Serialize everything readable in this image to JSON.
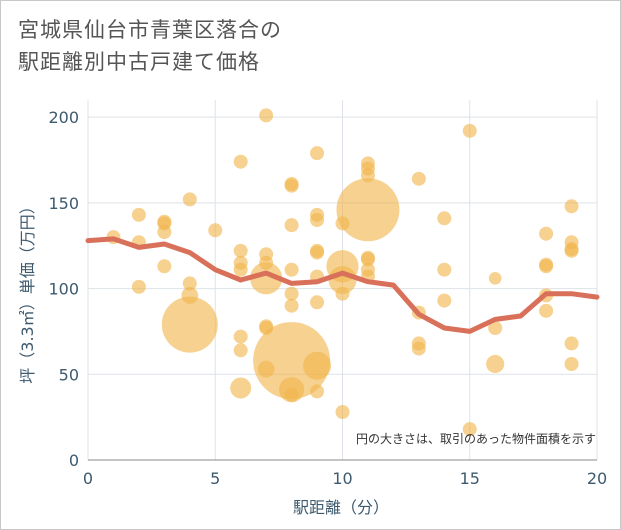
{
  "title_line1": "宮城県仙台市青葉区落合の",
  "title_line2": "駅距離別中古戸建て価格",
  "chart_data": {
    "type": "scatter",
    "xlabel": "駅距離（分）",
    "ylabel": "坪（3.3㎡）単価（万円）",
    "xlim": [
      0,
      20
    ],
    "ylim": [
      0,
      210
    ],
    "xticks": [
      0,
      5,
      10,
      15,
      20
    ],
    "yticks": [
      0,
      50,
      100,
      150,
      200
    ],
    "grid": true,
    "note": "円の大きさは、取引のあった物件面積を示す",
    "colors": {
      "bubble": "#f0b44c",
      "line": "#d9705a",
      "axis_text": "#3d5a6e",
      "grid": "#dde3e8"
    },
    "points": [
      {
        "x": 1,
        "y": 130,
        "s": 1
      },
      {
        "x": 2,
        "y": 143,
        "s": 1
      },
      {
        "x": 2,
        "y": 127,
        "s": 1
      },
      {
        "x": 2,
        "y": 101,
        "s": 1
      },
      {
        "x": 3,
        "y": 139,
        "s": 1
      },
      {
        "x": 3,
        "y": 138,
        "s": 1
      },
      {
        "x": 3,
        "y": 133,
        "s": 1
      },
      {
        "x": 3,
        "y": 113,
        "s": 1
      },
      {
        "x": 4,
        "y": 152,
        "s": 1
      },
      {
        "x": 4,
        "y": 103,
        "s": 1
      },
      {
        "x": 4,
        "y": 96,
        "s": 1.2
      },
      {
        "x": 4,
        "y": 79,
        "s": 4
      },
      {
        "x": 5,
        "y": 134,
        "s": 1
      },
      {
        "x": 6,
        "y": 174,
        "s": 1
      },
      {
        "x": 6,
        "y": 122,
        "s": 1
      },
      {
        "x": 6,
        "y": 115,
        "s": 1
      },
      {
        "x": 6,
        "y": 111,
        "s": 1
      },
      {
        "x": 6,
        "y": 72,
        "s": 1
      },
      {
        "x": 6,
        "y": 64,
        "s": 1
      },
      {
        "x": 6,
        "y": 42,
        "s": 1.5
      },
      {
        "x": 7,
        "y": 201,
        "s": 1
      },
      {
        "x": 7,
        "y": 120,
        "s": 1
      },
      {
        "x": 7,
        "y": 115,
        "s": 1
      },
      {
        "x": 7,
        "y": 106,
        "s": 2.3
      },
      {
        "x": 7,
        "y": 78,
        "s": 1
      },
      {
        "x": 7,
        "y": 77,
        "s": 1
      },
      {
        "x": 7,
        "y": 53,
        "s": 1.2
      },
      {
        "x": 8,
        "y": 161,
        "s": 1
      },
      {
        "x": 8,
        "y": 160,
        "s": 1
      },
      {
        "x": 8,
        "y": 137,
        "s": 1
      },
      {
        "x": 8,
        "y": 111,
        "s": 1
      },
      {
        "x": 8,
        "y": 97,
        "s": 1
      },
      {
        "x": 8,
        "y": 90,
        "s": 1
      },
      {
        "x": 8,
        "y": 58,
        "s": 5.5
      },
      {
        "x": 8,
        "y": 41,
        "s": 1.8
      },
      {
        "x": 8,
        "y": 38,
        "s": 1
      },
      {
        "x": 9,
        "y": 179,
        "s": 1
      },
      {
        "x": 9,
        "y": 143,
        "s": 1
      },
      {
        "x": 9,
        "y": 140,
        "s": 1
      },
      {
        "x": 9,
        "y": 122,
        "s": 1
      },
      {
        "x": 9,
        "y": 121,
        "s": 1
      },
      {
        "x": 9,
        "y": 107,
        "s": 1
      },
      {
        "x": 9,
        "y": 92,
        "s": 1
      },
      {
        "x": 9,
        "y": 55,
        "s": 2
      },
      {
        "x": 9,
        "y": 40,
        "s": 1
      },
      {
        "x": 10,
        "y": 138,
        "s": 1
      },
      {
        "x": 10,
        "y": 113,
        "s": 2.3
      },
      {
        "x": 10,
        "y": 105,
        "s": 2
      },
      {
        "x": 10,
        "y": 97,
        "s": 1
      },
      {
        "x": 10,
        "y": 28,
        "s": 1
      },
      {
        "x": 11,
        "y": 173,
        "s": 1
      },
      {
        "x": 11,
        "y": 170,
        "s": 1
      },
      {
        "x": 11,
        "y": 166,
        "s": 1
      },
      {
        "x": 11,
        "y": 146,
        "s": 4.5
      },
      {
        "x": 11,
        "y": 118,
        "s": 1
      },
      {
        "x": 11,
        "y": 117,
        "s": 1
      },
      {
        "x": 11,
        "y": 111,
        "s": 1
      },
      {
        "x": 11,
        "y": 107,
        "s": 1
      },
      {
        "x": 13,
        "y": 164,
        "s": 1
      },
      {
        "x": 13,
        "y": 86,
        "s": 1
      },
      {
        "x": 13,
        "y": 68,
        "s": 1
      },
      {
        "x": 13,
        "y": 65,
        "s": 1
      },
      {
        "x": 14,
        "y": 141,
        "s": 1
      },
      {
        "x": 14,
        "y": 111,
        "s": 1
      },
      {
        "x": 14,
        "y": 93,
        "s": 1
      },
      {
        "x": 15,
        "y": 192,
        "s": 1
      },
      {
        "x": 15,
        "y": 18,
        "s": 1
      },
      {
        "x": 16,
        "y": 106,
        "s": 0.9
      },
      {
        "x": 16,
        "y": 77,
        "s": 1
      },
      {
        "x": 16,
        "y": 56,
        "s": 1.3
      },
      {
        "x": 18,
        "y": 132,
        "s": 1
      },
      {
        "x": 18,
        "y": 114,
        "s": 1
      },
      {
        "x": 18,
        "y": 113,
        "s": 1
      },
      {
        "x": 18,
        "y": 96,
        "s": 1
      },
      {
        "x": 18,
        "y": 87,
        "s": 1
      },
      {
        "x": 19,
        "y": 148,
        "s": 1
      },
      {
        "x": 19,
        "y": 127,
        "s": 1
      },
      {
        "x": 19,
        "y": 123,
        "s": 1
      },
      {
        "x": 19,
        "y": 122,
        "s": 1
      },
      {
        "x": 19,
        "y": 68,
        "s": 1
      },
      {
        "x": 19,
        "y": 56,
        "s": 1
      }
    ],
    "trend": [
      {
        "x": 0,
        "y": 128
      },
      {
        "x": 1,
        "y": 129
      },
      {
        "x": 2,
        "y": 124
      },
      {
        "x": 3,
        "y": 126
      },
      {
        "x": 4,
        "y": 121
      },
      {
        "x": 5,
        "y": 111
      },
      {
        "x": 6,
        "y": 105
      },
      {
        "x": 7,
        "y": 109
      },
      {
        "x": 8,
        "y": 103
      },
      {
        "x": 9,
        "y": 104
      },
      {
        "x": 10,
        "y": 109
      },
      {
        "x": 11,
        "y": 104
      },
      {
        "x": 12,
        "y": 102
      },
      {
        "x": 13,
        "y": 85
      },
      {
        "x": 14,
        "y": 77
      },
      {
        "x": 15,
        "y": 75
      },
      {
        "x": 16,
        "y": 82
      },
      {
        "x": 17,
        "y": 84
      },
      {
        "x": 18,
        "y": 97
      },
      {
        "x": 19,
        "y": 97
      },
      {
        "x": 20,
        "y": 95
      }
    ]
  }
}
